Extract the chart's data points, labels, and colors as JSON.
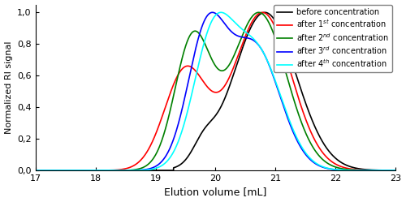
{
  "xlabel": "Elution volume [mL]",
  "ylabel": "Normalized RI signal",
  "xlim": [
    17,
    23
  ],
  "ylim": [
    0.0,
    1.05
  ],
  "xticks": [
    17,
    18,
    19,
    20,
    21,
    22,
    23
  ],
  "yticks": [
    0.0,
    0.2,
    0.4,
    0.6,
    0.8,
    1.0
  ],
  "ytick_labels": [
    "0,0",
    "0,2",
    "0,4",
    "0,6",
    "0,8",
    "1,0"
  ],
  "legend_labels": [
    "before concentration",
    "after 1$^{st}$ concentration",
    "after 2$^{nd}$ concentration",
    "after 3$^{rd}$ concentration",
    "after 4$^{th}$ concentration"
  ],
  "colors": [
    "black",
    "red",
    "green",
    "blue",
    "cyan"
  ],
  "linewidth": 1.2,
  "figsize": [
    5.0,
    2.49
  ],
  "dpi": 100,
  "curve_params": {
    "black": {
      "peaks": [
        {
          "mu": 20.82,
          "sigma": 0.52,
          "amp": 1.0
        },
        {
          "mu": 19.8,
          "sigma": 0.18,
          "amp": 0.11
        }
      ],
      "onset": 19.3
    },
    "red": {
      "peaks": [
        {
          "mu": 20.78,
          "sigma": 0.48,
          "amp": 1.0
        },
        {
          "mu": 19.5,
          "sigma": 0.35,
          "amp": 0.63
        }
      ],
      "onset": 18.0
    },
    "green": {
      "peaks": [
        {
          "mu": 20.72,
          "sigma": 0.46,
          "amp": 1.0
        },
        {
          "mu": 19.62,
          "sigma": 0.3,
          "amp": 0.82
        }
      ],
      "onset": 17.9
    },
    "blue": {
      "peaks": [
        {
          "mu": 19.85,
          "sigma": 0.32,
          "amp": 1.05
        },
        {
          "mu": 20.65,
          "sigma": 0.42,
          "amp": 0.97
        }
      ],
      "onset": 17.7
    },
    "cyan": {
      "peaks": [
        {
          "mu": 19.95,
          "sigma": 0.33,
          "amp": 1.02
        },
        {
          "mu": 20.68,
          "sigma": 0.42,
          "amp": 0.96
        }
      ],
      "onset": 17.65
    }
  }
}
